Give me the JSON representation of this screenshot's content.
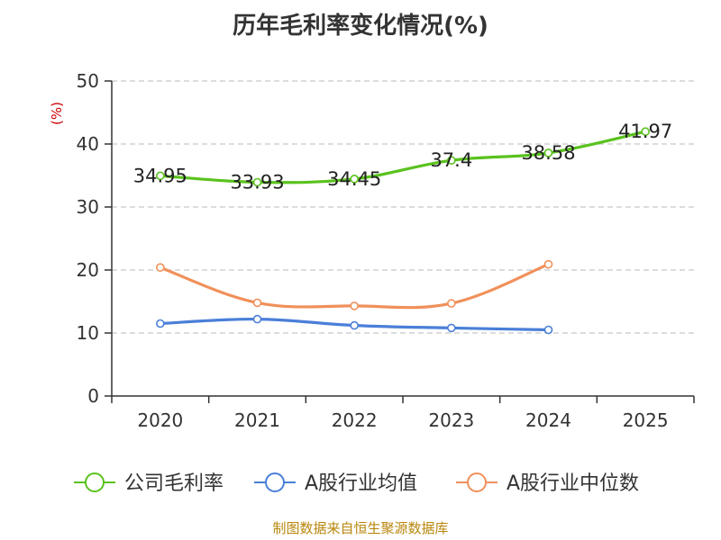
{
  "chart_data": {
    "type": "line",
    "title": "历年毛利率变化情况(%)",
    "ylabel": "(%)",
    "xlabel": "",
    "categories": [
      "2020",
      "2021",
      "2022",
      "2023",
      "2024",
      "2025"
    ],
    "ylim": [
      0,
      50
    ],
    "yticks": [
      "0",
      "10",
      "20",
      "30",
      "40",
      "50"
    ],
    "grid": true,
    "legend_position": "bottom",
    "series": [
      {
        "name": "公司毛利率",
        "color": "#5ac21e",
        "values": [
          34.95,
          33.93,
          34.45,
          37.4,
          38.58,
          41.97
        ],
        "labels": [
          "34.95",
          "33.93",
          "34.45",
          "37.4",
          "38.58",
          "41.97"
        ]
      },
      {
        "name": "A股行业均值",
        "color": "#4a7fd8",
        "values": [
          11.5,
          12.2,
          11.2,
          10.8,
          10.5,
          null
        ],
        "labels": []
      },
      {
        "name": "A股行业中位数",
        "color": "#f0905a",
        "values": [
          20.4,
          14.8,
          14.3,
          14.7,
          20.9,
          null
        ],
        "labels": []
      }
    ]
  },
  "footer": {
    "source": "制图数据来自恒生聚源数据库"
  }
}
